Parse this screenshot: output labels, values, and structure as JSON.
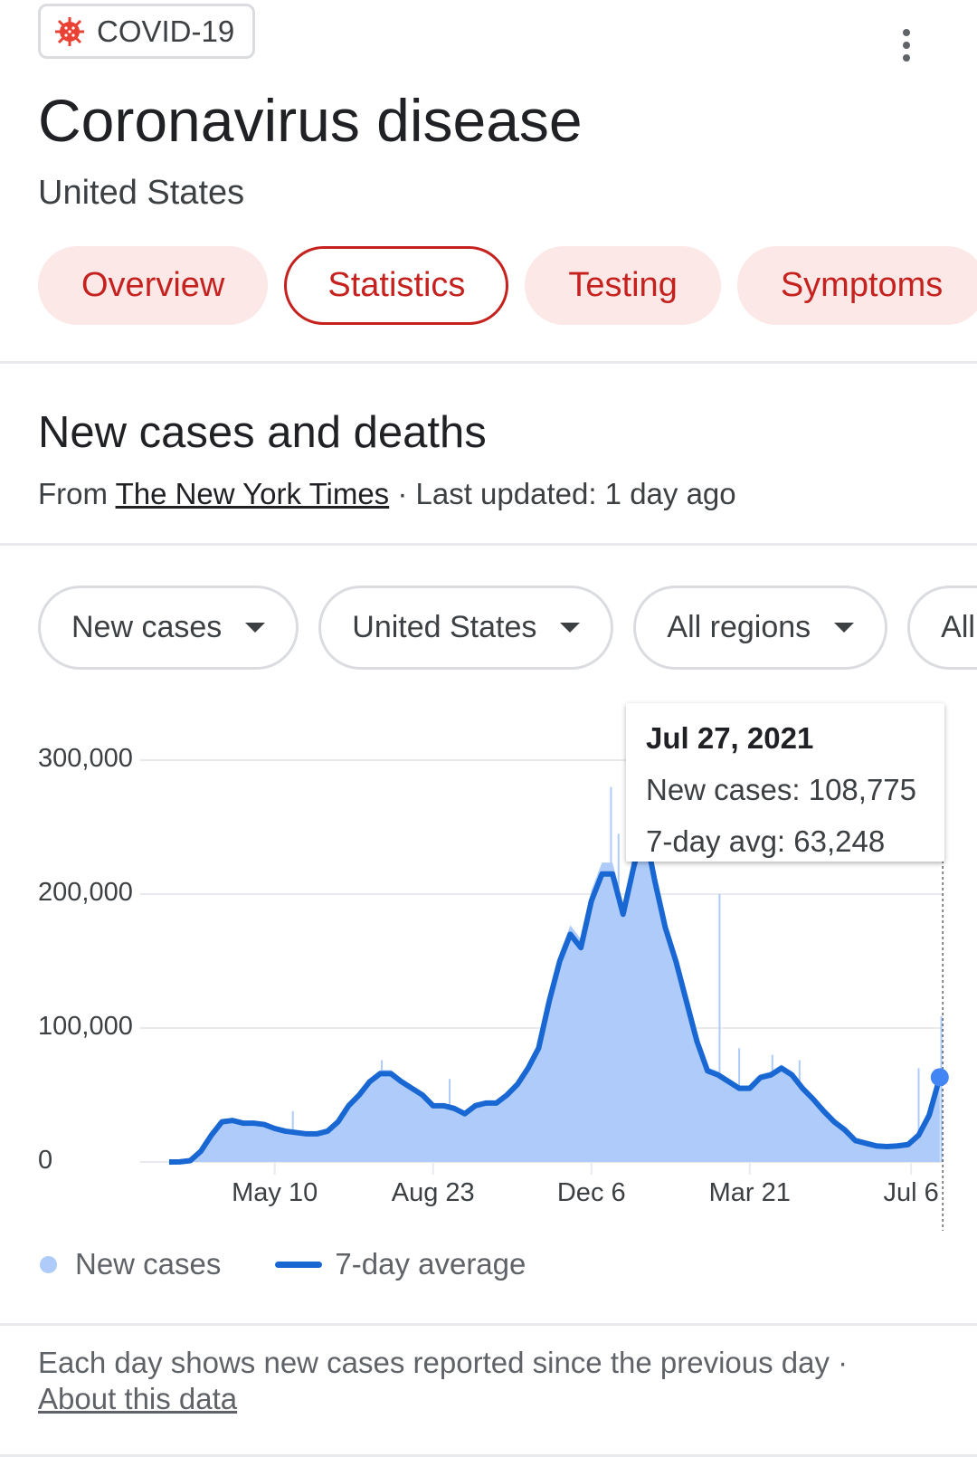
{
  "header": {
    "chip_label": "COVID-19",
    "title": "Coronavirus disease",
    "subtitle": "United States"
  },
  "tabs": [
    {
      "label": "Overview",
      "active": false
    },
    {
      "label": "Statistics",
      "active": true
    },
    {
      "label": "Testing",
      "active": false
    },
    {
      "label": "Symptoms",
      "active": false
    }
  ],
  "section": {
    "title": "New cases and deaths",
    "source_prefix": "From ",
    "source_link": "The New York Times",
    "updated": " · Last updated: 1 day ago"
  },
  "filters": [
    "New cases",
    "United States",
    "All regions",
    "All t"
  ],
  "tooltip": {
    "date": "Jul 27, 2021",
    "new_cases": "New cases: 108,775",
    "avg": "7-day avg: 63,248"
  },
  "legend": {
    "bars": "New cases",
    "line": "7-day average"
  },
  "footer": {
    "note": "Each day shows new cases reported since the previous day",
    "sep": " · ",
    "link": "About this data"
  },
  "colors": {
    "accent": "#c5221f",
    "bars": "#aecbfa",
    "line": "#1967d2",
    "point": "#4285f4"
  },
  "chart_data": {
    "type": "area",
    "title": "New cases and deaths",
    "ylim": [
      0,
      300000
    ],
    "yticks": [
      {
        "v": 0,
        "label": "0"
      },
      {
        "v": 100000,
        "label": "100,000"
      },
      {
        "v": 200000,
        "label": "200,000"
      },
      {
        "v": 300000,
        "label": "300,000"
      }
    ],
    "xticks": [
      {
        "day": 70,
        "label": "May 10"
      },
      {
        "day": 175,
        "label": "Aug 23"
      },
      {
        "day": 280,
        "label": "Dec 6"
      },
      {
        "day": 385,
        "label": "Mar 21"
      },
      {
        "day": 492,
        "label": "Jul 6"
      }
    ],
    "x_start": "Mar 1, 2020",
    "selected_day": 513,
    "avg_weekly": [
      0,
      100,
      1000,
      8000,
      20000,
      30000,
      31000,
      29000,
      29000,
      28000,
      25000,
      23000,
      22000,
      21000,
      21000,
      23000,
      30000,
      42000,
      50000,
      60000,
      66000,
      66000,
      60000,
      55000,
      50000,
      42000,
      42000,
      40000,
      36000,
      42000,
      44000,
      44000,
      50000,
      58000,
      70000,
      85000,
      120000,
      150000,
      170000,
      160000,
      195000,
      215000,
      215000,
      185000,
      220000,
      250000,
      210000,
      175000,
      150000,
      120000,
      90000,
      68000,
      65000,
      60000,
      55000,
      55000,
      63000,
      65000,
      70000,
      65000,
      55000,
      47000,
      38000,
      30000,
      24000,
      16000,
      14000,
      12000,
      11500,
      12000,
      13000,
      20000,
      35000,
      63248
    ],
    "spikes": [
      {
        "day": 82,
        "v": 38000
      },
      {
        "day": 141,
        "v": 76000
      },
      {
        "day": 186,
        "v": 62000
      },
      {
        "day": 293,
        "v": 280000
      },
      {
        "day": 298,
        "v": 245000
      },
      {
        "day": 307,
        "v": 300000
      },
      {
        "day": 365,
        "v": 200000
      },
      {
        "day": 378,
        "v": 85000
      },
      {
        "day": 400,
        "v": 80000
      },
      {
        "day": 418,
        "v": 76000
      },
      {
        "day": 497,
        "v": 70000
      },
      {
        "day": 512,
        "v": 108775
      }
    ]
  }
}
